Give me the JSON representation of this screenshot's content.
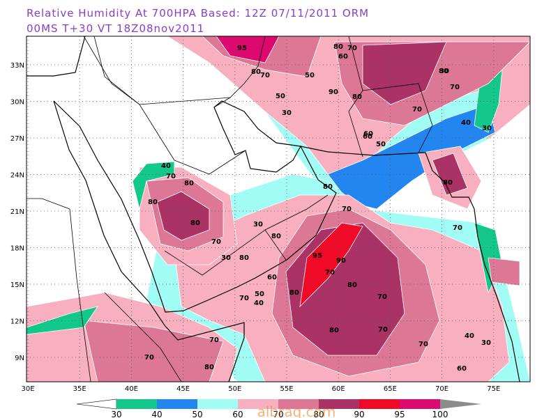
{
  "map": {
    "title_line1": "Relative Humidity At 700HPA    Based: 12Z  07/11/2011  ORM",
    "title_line2": "00MS  T+30 VT 18Z08nov2011",
    "lon_labels": [
      "30E",
      "35E",
      "40E",
      "45E",
      "50E",
      "55E",
      "60E",
      "65E",
      "70E",
      "75E"
    ],
    "lat_labels": [
      "9N",
      "12N",
      "15N",
      "18N",
      "21N",
      "24N",
      "27N",
      "30N",
      "33N"
    ],
    "contour_labels": [
      95,
      80,
      60,
      70,
      80,
      50,
      80,
      70,
      90,
      80,
      70,
      60,
      50,
      40,
      30,
      70,
      40,
      70,
      80,
      80,
      80,
      70,
      30,
      80,
      80,
      30,
      80,
      70,
      95,
      90,
      70,
      80,
      80,
      70,
      70,
      80,
      50,
      40,
      60,
      70,
      70,
      80,
      30,
      30,
      40,
      70,
      70,
      30,
      50,
      60,
      80,
      70,
      60
    ],
    "colorbar": {
      "levels": [
        30,
        40,
        50,
        60,
        70,
        80,
        90,
        95,
        100
      ],
      "colors": [
        "#ffffff",
        "#14c88c",
        "#2386f0",
        "#a0fcf4",
        "#f8b0c0",
        "#dc7896",
        "#aa3264",
        "#f00a28",
        "#dc0a6e",
        "#8c8c8c"
      ]
    },
    "watermark": "albraq.com"
  }
}
